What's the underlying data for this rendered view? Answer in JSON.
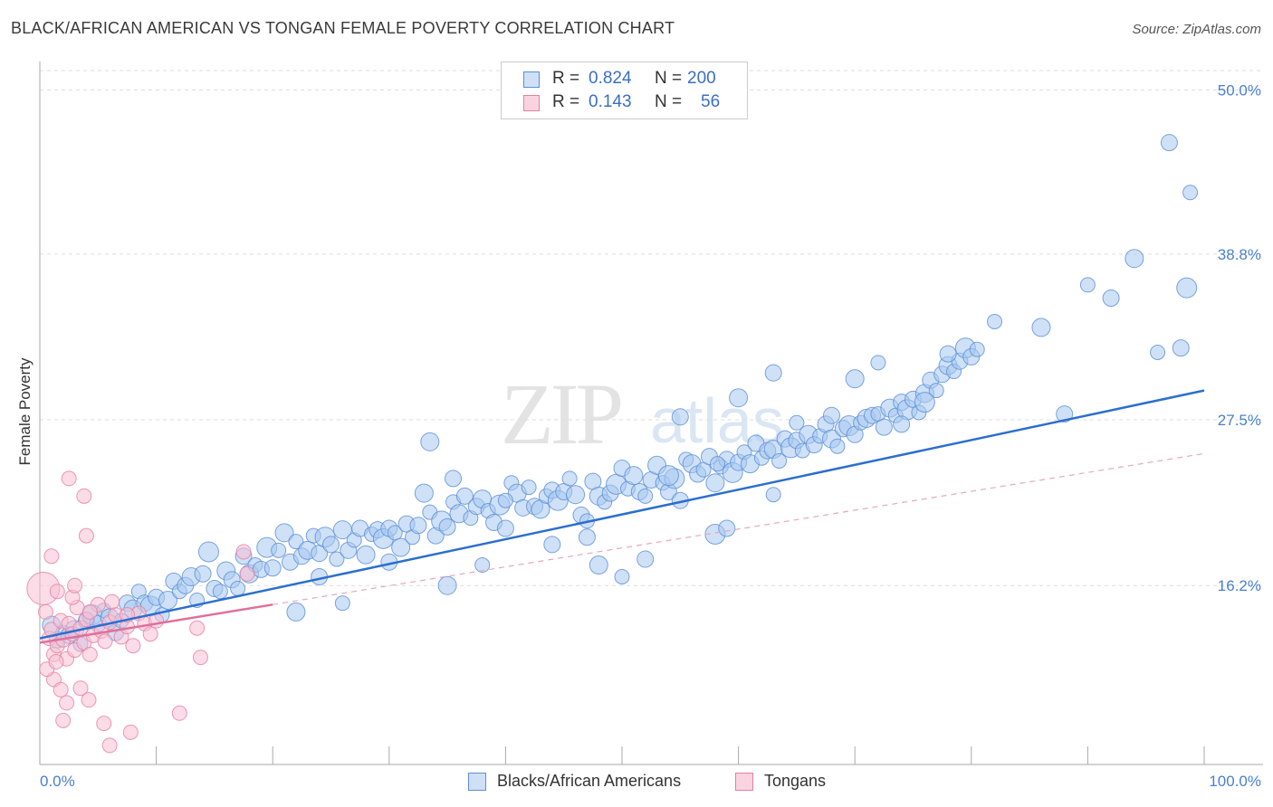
{
  "title": "BLACK/AFRICAN AMERICAN VS TONGAN FEMALE POVERTY CORRELATION CHART",
  "source": "Source: ZipAtlas.com",
  "watermark": {
    "zip": "ZIP",
    "atlas": "atlas"
  },
  "legend": {
    "rows": [
      {
        "r_label": "R =",
        "r_value": "0.824",
        "n_label": "N =",
        "n_value": "200",
        "color": "#a8c8f0",
        "border": "#5b8fd6"
      },
      {
        "r_label": "R =",
        "r_value": "0.143",
        "n_label": "N =",
        "n_value": "56",
        "color": "#f8c0d4",
        "border": "#e67fa3"
      }
    ]
  },
  "bottom_legend": [
    {
      "label": "Blacks/African Americans",
      "color": "#a8c8f0",
      "border": "#5b8fd6"
    },
    {
      "label": "Tongans",
      "color": "#f8c0d4",
      "border": "#e67fa3"
    }
  ],
  "chart_data": {
    "type": "scatter",
    "title": "BLACK/AFRICAN AMERICAN VS TONGAN FEMALE POVERTY CORRELATION CHART",
    "xlabel": "",
    "ylabel": "Female Poverty",
    "xlim": [
      0,
      100
    ],
    "ylim": [
      4,
      51.5
    ],
    "x_tick_labels": [
      "0.0%",
      "100.0%"
    ],
    "y_ticks": [
      16.2,
      27.5,
      38.8,
      50.0
    ],
    "y_tick_labels": [
      "16.2%",
      "27.5%",
      "38.8%",
      "50.0%"
    ],
    "grid": true,
    "series": [
      {
        "name": "Blacks/African Americans",
        "color": "#a8c8f0",
        "stroke": "#5b8fd6",
        "r": 0.824,
        "n": 200,
        "trend": {
          "x": [
            0,
            100
          ],
          "y": [
            12.6,
            29.5
          ],
          "color": "#2b6fcf"
        },
        "points": [
          [
            1,
            13.5
          ],
          [
            1.5,
            12.5
          ],
          [
            2,
            13
          ],
          [
            2.5,
            12.8
          ],
          [
            3,
            13.2
          ],
          [
            3.5,
            12.2
          ],
          [
            4,
            13.8
          ],
          [
            4.5,
            14.2
          ],
          [
            5,
            13.6
          ],
          [
            5.5,
            14.5
          ],
          [
            6,
            14
          ],
          [
            6.5,
            13
          ],
          [
            7,
            13.8
          ],
          [
            7.5,
            15
          ],
          [
            8,
            14.6
          ],
          [
            8.5,
            15.8
          ],
          [
            9,
            15
          ],
          [
            9.5,
            14.8
          ],
          [
            10,
            15.4
          ],
          [
            10.5,
            14.2
          ],
          [
            11,
            15.2
          ],
          [
            11.5,
            16.5
          ],
          [
            12,
            15.8
          ],
          [
            12.5,
            16.2
          ],
          [
            13,
            16.8
          ],
          [
            13.5,
            15.2
          ],
          [
            14,
            17
          ],
          [
            14.5,
            18.5
          ],
          [
            15,
            16
          ],
          [
            15.5,
            15.8
          ],
          [
            16,
            17.2
          ],
          [
            16.5,
            16.6
          ],
          [
            17,
            16
          ],
          [
            17.5,
            18.2
          ],
          [
            18,
            17
          ],
          [
            18.5,
            17.6
          ],
          [
            19,
            17.3
          ],
          [
            19.5,
            18.8
          ],
          [
            20,
            17.4
          ],
          [
            20.5,
            18.6
          ],
          [
            21,
            19.8
          ],
          [
            21.5,
            17.8
          ],
          [
            22,
            19.2
          ],
          [
            22.5,
            18.2
          ],
          [
            23,
            18.6
          ],
          [
            23.5,
            19.6
          ],
          [
            24,
            18.4
          ],
          [
            24.5,
            19.5
          ],
          [
            25,
            19
          ],
          [
            25.5,
            18
          ],
          [
            26,
            20
          ],
          [
            26.5,
            18.6
          ],
          [
            27,
            19.3
          ],
          [
            27.5,
            20.1
          ],
          [
            28,
            18.3
          ],
          [
            28.5,
            19.7
          ],
          [
            29,
            20
          ],
          [
            29.5,
            19.4
          ],
          [
            30,
            20.1
          ],
          [
            30.5,
            19.8
          ],
          [
            31,
            18.8
          ],
          [
            31.5,
            20.4
          ],
          [
            32,
            19.5
          ],
          [
            32.5,
            20.3
          ],
          [
            33,
            22.5
          ],
          [
            33.5,
            21.2
          ],
          [
            34,
            19.6
          ],
          [
            34.5,
            20.6
          ],
          [
            35,
            20.2
          ],
          [
            35.5,
            21.9
          ],
          [
            36,
            21.1
          ],
          [
            36.5,
            22.3
          ],
          [
            37,
            20.8
          ],
          [
            37.5,
            21.6
          ],
          [
            38,
            22.1
          ],
          [
            38.5,
            21.3
          ],
          [
            39,
            20.5
          ],
          [
            39.5,
            21.7
          ],
          [
            40,
            20.1
          ],
          [
            40.5,
            23.2
          ],
          [
            41,
            22.5
          ],
          [
            41.5,
            21.5
          ],
          [
            42,
            22.9
          ],
          [
            42.5,
            21.6
          ],
          [
            43,
            21.4
          ],
          [
            43.5,
            22.3
          ],
          [
            44,
            22.7
          ],
          [
            44.5,
            22
          ],
          [
            45,
            22.6
          ],
          [
            45.5,
            23.5
          ],
          [
            46,
            22.4
          ],
          [
            46.5,
            21
          ],
          [
            47,
            20.6
          ],
          [
            47.5,
            23.3
          ],
          [
            48,
            22.3
          ],
          [
            48.5,
            21.9
          ],
          [
            49,
            22.5
          ],
          [
            49.5,
            23.1
          ],
          [
            50,
            24.2
          ],
          [
            50.5,
            22.8
          ],
          [
            51,
            23.7
          ],
          [
            51.5,
            22.6
          ],
          [
            52,
            22.3
          ],
          [
            52.5,
            23.4
          ],
          [
            53,
            24.4
          ],
          [
            53.5,
            23.2
          ],
          [
            54,
            22.6
          ],
          [
            54.5,
            23.5
          ],
          [
            55,
            22
          ],
          [
            55.5,
            24.8
          ],
          [
            56,
            24.5
          ],
          [
            56.5,
            23.8
          ],
          [
            57,
            24.1
          ],
          [
            57.5,
            25
          ],
          [
            58,
            23.2
          ],
          [
            58.5,
            24.3
          ],
          [
            59,
            24.8
          ],
          [
            59.5,
            23.9
          ],
          [
            60,
            24.6
          ],
          [
            60.5,
            25.3
          ],
          [
            61,
            24.5
          ],
          [
            61.5,
            25.9
          ],
          [
            62,
            24.9
          ],
          [
            62.5,
            25.4
          ],
          [
            63,
            25.5
          ],
          [
            63.5,
            24.7
          ],
          [
            64,
            26.2
          ],
          [
            64.5,
            25.6
          ],
          [
            65,
            26.1
          ],
          [
            65.5,
            25.4
          ],
          [
            66,
            26.5
          ],
          [
            66.5,
            25.8
          ],
          [
            67,
            26.4
          ],
          [
            67.5,
            27.2
          ],
          [
            68,
            26.2
          ],
          [
            68.5,
            25.7
          ],
          [
            69,
            26.9
          ],
          [
            69.5,
            27.1
          ],
          [
            70,
            26.5
          ],
          [
            70.5,
            27.3
          ],
          [
            71,
            27.6
          ],
          [
            71.5,
            27.8
          ],
          [
            72,
            27.9
          ],
          [
            72.5,
            27
          ],
          [
            73,
            28.3
          ],
          [
            73.5,
            27.8
          ],
          [
            74,
            28.7
          ],
          [
            74.5,
            28.2
          ],
          [
            75,
            28.9
          ],
          [
            75.5,
            28
          ],
          [
            76,
            29.3
          ],
          [
            76.5,
            30.2
          ],
          [
            77,
            29.5
          ],
          [
            77.5,
            30.6
          ],
          [
            78,
            31.2
          ],
          [
            78.5,
            30.8
          ],
          [
            79,
            31.5
          ],
          [
            79.5,
            32.4
          ],
          [
            80,
            31.8
          ],
          [
            80.5,
            32.3
          ],
          [
            33.5,
            26
          ],
          [
            35.5,
            23.5
          ],
          [
            40,
            22
          ],
          [
            47,
            19.5
          ],
          [
            48,
            17.6
          ],
          [
            50,
            16.8
          ],
          [
            52,
            18
          ],
          [
            58,
            19.7
          ],
          [
            59,
            20.1
          ],
          [
            63,
            22.4
          ],
          [
            22,
            14.4
          ],
          [
            24,
            16.8
          ],
          [
            26,
            15
          ],
          [
            30,
            17.8
          ],
          [
            35,
            16.2
          ],
          [
            38,
            17.6
          ],
          [
            44,
            19
          ],
          [
            54,
            23.7
          ],
          [
            55,
            27.7
          ],
          [
            58.2,
            24.5
          ],
          [
            60,
            29
          ],
          [
            63,
            30.7
          ],
          [
            65,
            27.3
          ],
          [
            68,
            27.8
          ],
          [
            70,
            30.3
          ],
          [
            72,
            31.4
          ],
          [
            74,
            27.2
          ],
          [
            76,
            28.7
          ],
          [
            78,
            32
          ],
          [
            82,
            34.2
          ],
          [
            86,
            33.8
          ],
          [
            88,
            27.9
          ],
          [
            90,
            36.7
          ],
          [
            92,
            35.8
          ],
          [
            94,
            38.5
          ],
          [
            96,
            32.1
          ],
          [
            98,
            32.4
          ],
          [
            98.5,
            36.5
          ],
          [
            97,
            46.4
          ],
          [
            98.8,
            43
          ]
        ]
      },
      {
        "name": "Tongans",
        "color": "#f8c0d4",
        "stroke": "#e67fa3",
        "r": 0.143,
        "n": 56,
        "trend": {
          "x": [
            0,
            20
          ],
          "y": [
            12.3,
            14.9
          ],
          "color": "#e0709a"
        },
        "dashed_trend": {
          "x": [
            20,
            100
          ],
          "y": [
            14.9,
            25.2
          ],
          "color": "#e8a6bd"
        },
        "points": [
          [
            0.3,
            16
          ],
          [
            0.5,
            14.4
          ],
          [
            0.8,
            12.6
          ],
          [
            1,
            13.2
          ],
          [
            1.2,
            11.5
          ],
          [
            1.5,
            12.1
          ],
          [
            1.8,
            13.8
          ],
          [
            2,
            12.5
          ],
          [
            2.3,
            11.2
          ],
          [
            2.5,
            13.6
          ],
          [
            2.8,
            12.9
          ],
          [
            3,
            11.8
          ],
          [
            3.2,
            14.7
          ],
          [
            3.5,
            13.3
          ],
          [
            3.8,
            12.3
          ],
          [
            4,
            13.9
          ],
          [
            4.3,
            11.5
          ],
          [
            4.6,
            12.8
          ],
          [
            5,
            14.9
          ],
          [
            5.3,
            13.1
          ],
          [
            5.6,
            12.4
          ],
          [
            6,
            13.7
          ],
          [
            6.5,
            14.2
          ],
          [
            7,
            12.7
          ],
          [
            7.5,
            13.4
          ],
          [
            8,
            12.1
          ],
          [
            8.5,
            14.3
          ],
          [
            9,
            13.6
          ],
          [
            9.5,
            12.9
          ],
          [
            10,
            13.8
          ],
          [
            1,
            18.2
          ],
          [
            2.5,
            23.5
          ],
          [
            3.8,
            22.3
          ],
          [
            4,
            19.6
          ],
          [
            1.5,
            15.8
          ],
          [
            2.8,
            15.4
          ],
          [
            3,
            16.2
          ],
          [
            4.3,
            14.4
          ],
          [
            6.2,
            15.1
          ],
          [
            7.5,
            14.2
          ],
          [
            1.2,
            9.8
          ],
          [
            1.8,
            9.1
          ],
          [
            2.3,
            8.2
          ],
          [
            3.5,
            9.2
          ],
          [
            4.2,
            8.4
          ],
          [
            5.5,
            6.8
          ],
          [
            7.8,
            6.2
          ],
          [
            6,
            5.3
          ],
          [
            12,
            7.5
          ],
          [
            13.5,
            13.3
          ],
          [
            13.8,
            11.3
          ],
          [
            17.5,
            18.5
          ],
          [
            17.8,
            17
          ],
          [
            2,
            7
          ],
          [
            0.6,
            10.5
          ],
          [
            1.4,
            11
          ]
        ]
      }
    ]
  }
}
